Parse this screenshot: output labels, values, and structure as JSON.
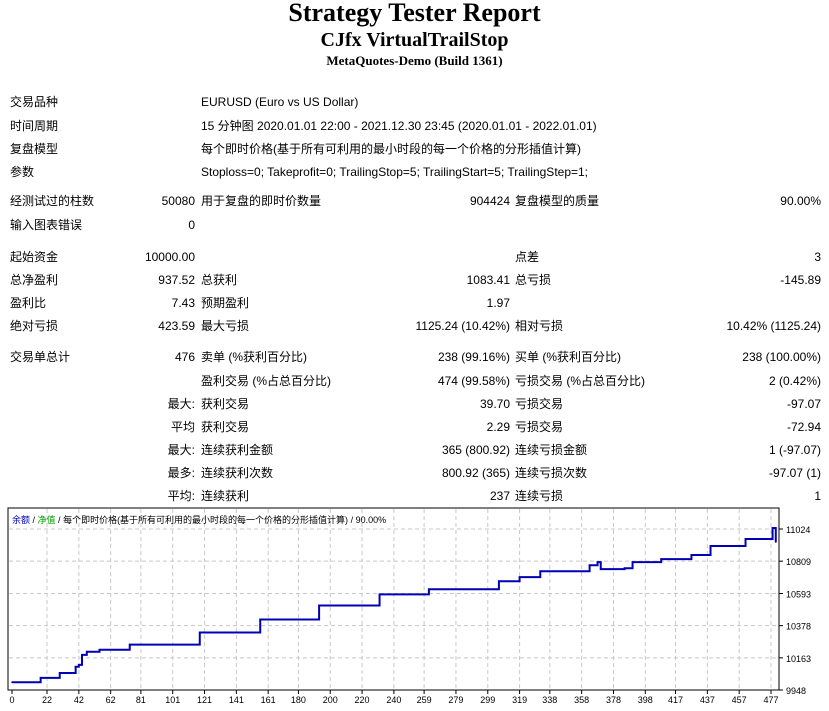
{
  "header": {
    "title": "Strategy Tester Report",
    "subtitle": "CJfx VirtualTrailStop",
    "build": "MetaQuotes-Demo (Build 1361)"
  },
  "info_rows": [
    {
      "label": "交易品种",
      "value": "EURUSD (Euro vs US Dollar)"
    },
    {
      "label": "时间周期",
      "value": "15 分钟图 2020.01.01 22:00 - 2021.12.30 23:45 (2020.01.01 - 2022.01.01)"
    },
    {
      "label": "复盘模型",
      "value": "每个即时价格(基于所有可利用的最小时段的每一个价格的分形插值计算)"
    },
    {
      "label": "参数",
      "value": "Stoploss=0; Takeprofit=0; TrailingStop=5; TrailingStart=5; TrailingStep=1;"
    }
  ],
  "stat_rows": [
    [
      [
        "经测试过的柱数",
        "50080"
      ],
      [
        "用于复盘的即时价数量",
        "904424"
      ],
      [
        "复盘模型的质量",
        "90.00%"
      ]
    ],
    [
      [
        "输入图表错误",
        "0"
      ],
      [
        "",
        ""
      ],
      [
        "",
        ""
      ]
    ],
    [
      [
        "起始资金",
        "10000.00"
      ],
      [
        "",
        ""
      ],
      [
        "点差",
        "3"
      ]
    ],
    [
      [
        "总净盈利",
        "937.52"
      ],
      [
        "总获利",
        "1083.41"
      ],
      [
        "总亏损",
        "-145.89"
      ]
    ],
    [
      [
        "盈利比",
        "7.43"
      ],
      [
        "预期盈利",
        "1.97"
      ],
      [
        "",
        ""
      ]
    ],
    [
      [
        "绝对亏损",
        "423.59"
      ],
      [
        "最大亏损",
        "1125.24 (10.42%)"
      ],
      [
        "相对亏损",
        "10.42% (1125.24)"
      ]
    ],
    [
      [
        "交易单总计",
        "476"
      ],
      [
        "卖单 (%获利百分比)",
        "238 (99.16%)"
      ],
      [
        "买单 (%获利百分比)",
        "238 (100.00%)"
      ]
    ],
    [
      [
        "",
        ""
      ],
      [
        "盈利交易 (%占总百分比)",
        "474 (99.58%)"
      ],
      [
        "亏损交易 (%占总百分比)",
        "2 (0.42%)"
      ]
    ],
    [
      [
        "",
        "最大:"
      ],
      [
        "获利交易",
        "39.70"
      ],
      [
        "亏损交易",
        "-97.07"
      ]
    ],
    [
      [
        "",
        "平均"
      ],
      [
        "获利交易",
        "2.29"
      ],
      [
        "亏损交易",
        "-72.94"
      ]
    ],
    [
      [
        "",
        "最大:"
      ],
      [
        "连续获利金额",
        "365 (800.92)"
      ],
      [
        "连续亏损金额",
        "1 (-97.07)"
      ]
    ],
    [
      [
        "",
        "最多:"
      ],
      [
        "连续获利次数",
        "800.92 (365)"
      ],
      [
        "连续亏损次数",
        "-97.07 (1)"
      ]
    ],
    [
      [
        "",
        "平均:"
      ],
      [
        "连续获利",
        "237"
      ],
      [
        "连续亏损",
        "1"
      ]
    ]
  ],
  "chart_data": {
    "type": "line",
    "legend": {
      "balance": "余额",
      "equity": "净值",
      "model": "每个即时价格(基于所有可利用的最小时段的每一个价格的分形插值计算)",
      "quality": "90.00%"
    },
    "colors": {
      "balance": "#0000b4",
      "equity": "#00c000",
      "grid": "#c8c8c8"
    },
    "x_ticks": [
      0,
      22,
      42,
      62,
      81,
      101,
      121,
      141,
      161,
      180,
      200,
      220,
      240,
      259,
      279,
      299,
      319,
      338,
      358,
      378,
      398,
      417,
      437,
      457,
      477
    ],
    "y_ticks": [
      9948,
      10163,
      10378,
      10593,
      10809,
      11024
    ],
    "grid": true,
    "series": [
      {
        "name": "余额",
        "x": [
          0,
          18,
          30,
          40,
          42,
          44,
          47,
          55,
          74,
          118,
          156,
          193,
          231,
          262,
          306,
          319,
          332,
          363,
          368,
          370,
          385,
          390,
          408,
          427,
          439,
          461,
          478,
          480
        ],
        "y": [
          10000,
          10029,
          10062,
          10103,
          10116,
          10183,
          10204,
          10217,
          10251,
          10332,
          10419,
          10513,
          10587,
          10621,
          10675,
          10702,
          10742,
          10782,
          10803,
          10756,
          10762,
          10803,
          10823,
          10850,
          10910,
          10957,
          11031,
          10937.52
        ]
      }
    ]
  }
}
